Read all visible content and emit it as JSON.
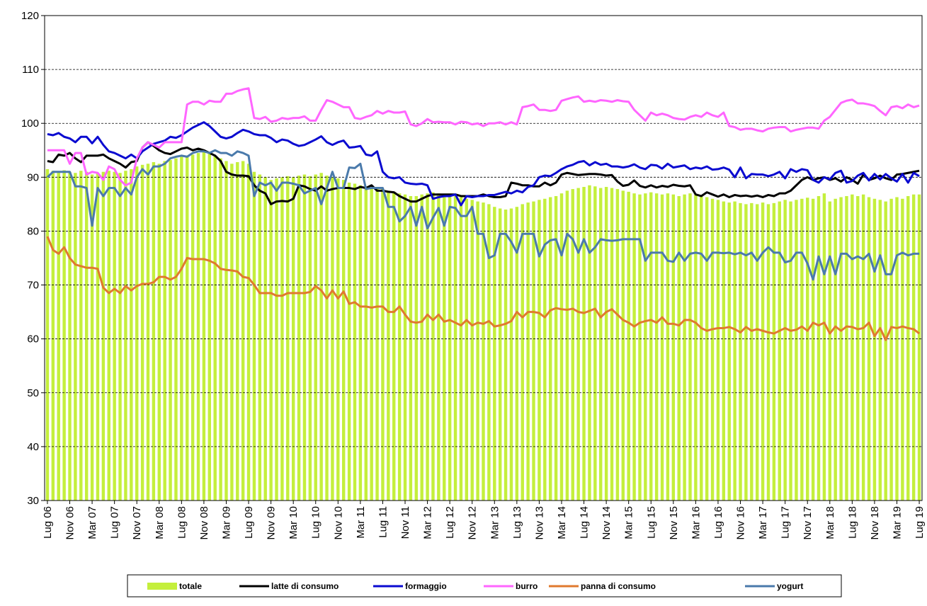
{
  "chart_data": {
    "type": "line",
    "categories": [
      "Lug 06",
      null,
      null,
      null,
      "Nov 06",
      null,
      null,
      null,
      "Mar 07",
      null,
      null,
      null,
      "Lug 07",
      null,
      null,
      null,
      "Nov 07",
      null,
      null,
      null,
      "Mar 08",
      null,
      null,
      null,
      "Lug 08",
      null,
      null,
      null,
      "Nov 08",
      null,
      null,
      null,
      "Mar 09",
      null,
      null,
      null,
      "Lug 09",
      null,
      null,
      null,
      "Nov 09",
      null,
      null,
      null,
      "Mar 10",
      null,
      null,
      null,
      "Lug 10",
      null,
      null,
      null,
      "Nov 10",
      null,
      null,
      null,
      "Mar 11",
      null,
      null,
      null,
      "Lug 11",
      null,
      null,
      null,
      "Nov 11",
      null,
      null,
      null,
      "Mar 12",
      null,
      null,
      null,
      "Lug 12",
      null,
      null,
      null,
      "Nov 12",
      null,
      null,
      null,
      "Mar 13",
      null,
      null,
      null,
      "Lug 13",
      null,
      null,
      null,
      "Nov 13",
      null,
      null,
      null,
      "Mar 14",
      null,
      null,
      null,
      "Lug 14",
      null,
      null,
      null,
      "Nov 14",
      null,
      null,
      null,
      "Mar 15",
      null,
      null,
      null,
      "Lug 15",
      null,
      null,
      null,
      "Nov 15",
      null,
      null,
      null,
      "Mar 16",
      null,
      null,
      null,
      "Lug 16",
      null,
      null,
      null,
      "Nov 16",
      null,
      null,
      null,
      "Mar 17",
      null,
      null,
      null,
      "Lug 17",
      null,
      null,
      null,
      "Nov 17",
      null,
      null,
      null,
      "Mar 18",
      null,
      null,
      null,
      "Lug 18",
      null,
      null,
      null,
      "Nov 18",
      null,
      null,
      null,
      "Mar 19",
      null,
      null,
      null,
      "Lug 19"
    ],
    "series": [
      {
        "name": "totale",
        "type": "bar",
        "color": "#c4ef3c",
        "values": [
          91.5,
          91.2,
          91.0,
          91.3,
          91.0,
          90.8,
          91.2,
          91.0,
          90.5,
          90.8,
          91.0,
          91.2,
          91.0,
          90.8,
          91.2,
          91.5,
          92.0,
          92.3,
          92.5,
          92.8,
          92.5,
          93.0,
          93.2,
          93.5,
          93.8,
          94.0,
          94.2,
          94.5,
          94.8,
          94.5,
          94.0,
          93.5,
          93.0,
          92.5,
          92.8,
          93.0,
          92.5,
          91.0,
          90.5,
          90.0,
          89.5,
          89.8,
          90.0,
          90.2,
          90.0,
          90.3,
          90.5,
          90.2,
          90.5,
          90.8,
          90.3,
          90.0,
          89.8,
          89.5,
          89.0,
          88.8,
          88.5,
          88.3,
          88.0,
          88.0,
          87.8,
          87.5,
          87.3,
          87.0,
          86.8,
          86.5,
          86.5,
          86.8,
          87.0,
          87.2,
          87.0,
          86.8,
          86.8,
          86.5,
          86.3,
          86.0,
          85.8,
          85.5,
          85.3,
          85.0,
          84.5,
          84.2,
          84.0,
          84.2,
          84.5,
          85.0,
          85.3,
          85.5,
          85.8,
          86.0,
          86.3,
          86.5,
          87.0,
          87.5,
          87.8,
          88.0,
          88.2,
          88.5,
          88.3,
          88.0,
          88.2,
          88.0,
          87.8,
          87.5,
          87.3,
          87.0,
          86.8,
          87.0,
          87.2,
          87.0,
          86.8,
          87.0,
          86.8,
          86.5,
          86.8,
          87.0,
          86.8,
          86.5,
          86.3,
          86.0,
          85.8,
          85.5,
          85.3,
          85.5,
          85.2,
          85.0,
          85.2,
          85.0,
          85.3,
          85.0,
          85.2,
          85.5,
          85.8,
          85.5,
          85.8,
          86.0,
          86.2,
          86.0,
          86.5,
          87.0,
          85.5,
          86.0,
          86.3,
          86.5,
          86.8,
          86.5,
          86.8,
          86.3,
          86.0,
          85.8,
          85.5,
          86.0,
          86.3,
          86.0,
          86.5,
          86.8,
          86.8
        ]
      },
      {
        "name": "latte di consumo",
        "color": "#000000",
        "values": [
          93.0,
          92.8,
          94.2,
          94.0,
          94.5,
          93.5,
          92.8,
          94.0,
          94.0,
          94.0,
          94.2,
          93.5,
          93.0,
          92.5,
          91.8,
          92.8,
          93.0,
          95.5,
          96.5,
          95.8,
          95.0,
          94.5,
          94.3,
          94.8,
          95.3,
          95.5,
          95.0,
          95.3,
          95.0,
          94.5,
          94.0,
          93.0,
          91.0,
          90.5,
          90.3,
          90.3,
          90.2,
          88.5,
          87.5,
          87.0,
          85.0,
          85.5,
          85.6,
          85.5,
          86.0,
          88.5,
          88.3,
          87.8,
          87.5,
          88.3,
          87.5,
          87.8,
          88.0,
          88.0,
          88.0,
          87.8,
          88.2,
          88.0,
          88.5,
          87.5,
          87.5,
          87.3,
          87.2,
          86.5,
          86.0,
          85.5,
          85.5,
          86.0,
          86.5,
          86.8,
          86.8,
          86.8,
          86.8,
          86.8,
          86.5,
          86.5,
          86.5,
          86.5,
          86.8,
          86.5,
          86.3,
          86.3,
          86.5,
          89.0,
          88.8,
          88.5,
          88.5,
          88.3,
          88.3,
          89.0,
          88.5,
          89.0,
          90.5,
          90.8,
          90.6,
          90.4,
          90.5,
          90.6,
          90.6,
          90.5,
          90.3,
          90.4,
          89.2,
          88.4,
          88.6,
          89.4,
          88.4,
          88.1,
          88.5,
          88.1,
          88.4,
          88.2,
          88.6,
          88.4,
          88.3,
          88.5,
          86.8,
          86.5,
          87.2,
          86.8,
          86.4,
          86.8,
          86.3,
          86.7,
          86.5,
          86.6,
          86.4,
          86.6,
          86.3,
          86.7,
          86.5,
          87.0,
          87.0,
          87.5,
          88.5,
          89.5,
          90.0,
          89.5,
          89.8,
          90.0,
          89.5,
          89.8,
          89.2,
          90.0,
          89.5,
          88.8,
          90.5,
          89.5,
          89.8,
          90.3,
          89.8,
          89.5,
          90.5,
          90.6,
          90.8,
          91.0,
          91.2
        ]
      },
      {
        "name": "formaggio",
        "color": "#0a0ad0",
        "values": [
          98.0,
          97.8,
          98.2,
          97.5,
          97.2,
          96.5,
          97.5,
          97.5,
          96.3,
          97.5,
          96.0,
          94.8,
          94.5,
          94.0,
          93.5,
          94.2,
          93.5,
          94.8,
          95.5,
          96.2,
          96.5,
          96.8,
          97.5,
          97.3,
          97.8,
          98.5,
          99.2,
          99.7,
          100.2,
          99.5,
          98.5,
          97.5,
          97.2,
          97.5,
          98.2,
          98.8,
          98.5,
          98.0,
          97.8,
          97.8,
          97.3,
          96.5,
          97.0,
          96.8,
          96.2,
          95.8,
          96.0,
          96.5,
          97.0,
          97.6,
          96.5,
          96.0,
          96.5,
          96.8,
          95.5,
          95.6,
          95.8,
          94.2,
          94.0,
          94.8,
          91.0,
          90.0,
          89.8,
          90.0,
          89.0,
          88.8,
          88.7,
          88.8,
          88.5,
          86.0,
          86.3,
          86.5,
          86.5,
          86.8,
          84.8,
          86.5,
          86.3,
          86.5,
          86.5,
          86.7,
          86.7,
          87.0,
          87.3,
          87.0,
          87.5,
          87.2,
          88.2,
          88.5,
          90.0,
          90.3,
          90.2,
          90.8,
          91.5,
          92.0,
          92.3,
          92.8,
          93.0,
          92.2,
          92.8,
          92.3,
          92.5,
          92.0,
          92.0,
          91.8,
          92.0,
          92.4,
          91.8,
          91.5,
          92.3,
          92.2,
          91.6,
          92.5,
          91.8,
          92.0,
          92.2,
          91.5,
          91.8,
          91.6,
          92.0,
          91.4,
          91.5,
          91.8,
          91.4,
          90.0,
          91.8,
          89.8,
          90.6,
          90.5,
          90.5,
          90.2,
          90.5,
          91.0,
          89.8,
          91.5,
          91.0,
          91.5,
          91.3,
          89.5,
          89.0,
          90.0,
          89.6,
          90.8,
          91.2,
          89.0,
          89.3,
          90.3,
          90.8,
          89.4,
          90.6,
          89.6,
          90.6,
          89.8,
          89.2,
          90.6,
          89.0,
          90.8,
          90.2
        ]
      },
      {
        "name": "burro",
        "color": "#ff66ff",
        "values": [
          95.0,
          95.0,
          95.0,
          95.0,
          92.5,
          94.5,
          94.5,
          90.5,
          91.0,
          90.8,
          89.5,
          92.0,
          91.5,
          89.5,
          88.5,
          89.0,
          93.5,
          95.5,
          96.5,
          96.0,
          95.5,
          96.5,
          96.5,
          96.5,
          96.5,
          103.5,
          104.0,
          104.0,
          103.5,
          104.2,
          104.0,
          104.0,
          105.5,
          105.5,
          106.0,
          106.3,
          106.5,
          101.0,
          100.8,
          101.2,
          100.3,
          100.5,
          101.0,
          100.8,
          101.0,
          101.0,
          101.3,
          100.5,
          100.5,
          102.5,
          104.3,
          104.0,
          103.5,
          103.0,
          103.0,
          101.0,
          100.8,
          101.2,
          101.5,
          102.3,
          101.8,
          102.3,
          102.0,
          102.0,
          102.2,
          99.8,
          99.5,
          100.0,
          100.8,
          100.2,
          100.3,
          100.2,
          100.2,
          99.8,
          100.3,
          100.2,
          99.8,
          100.0,
          99.5,
          100.0,
          100.0,
          100.2,
          99.8,
          100.2,
          99.8,
          103.0,
          103.2,
          103.5,
          102.5,
          102.5,
          102.3,
          102.5,
          104.2,
          104.5,
          104.8,
          105.0,
          104.0,
          104.2,
          104.0,
          104.3,
          104.2,
          104.0,
          104.3,
          104.1,
          104.0,
          102.5,
          101.5,
          100.5,
          102.0,
          101.5,
          101.8,
          101.5,
          101.0,
          100.8,
          100.7,
          101.2,
          101.5,
          101.2,
          102.0,
          101.5,
          101.2,
          102.0,
          99.5,
          99.3,
          98.8,
          99.0,
          99.0,
          98.7,
          98.5,
          99.0,
          99.2,
          99.3,
          99.3,
          98.5,
          98.8,
          99.0,
          99.2,
          99.2,
          99.0,
          100.5,
          101.2,
          102.5,
          103.8,
          104.2,
          104.4,
          103.7,
          103.7,
          103.5,
          103.2,
          102.3,
          101.5,
          103.0,
          103.2,
          102.8,
          103.5,
          103.0,
          103.3
        ]
      },
      {
        "name": "panna di consumo",
        "color": "#e07a2e",
        "values": [
          79,
          76.5,
          75.8,
          77,
          75,
          73.8,
          73.5,
          73.2,
          73.2,
          73,
          69.5,
          68.5,
          69.3,
          68.5,
          69.8,
          69,
          69.8,
          70.2,
          70.2,
          70.5,
          71.5,
          71.5,
          71,
          71.5,
          73,
          75,
          74.8,
          74.8,
          74.8,
          74.5,
          74,
          73,
          72.8,
          72.7,
          72.5,
          71.5,
          71.3,
          70,
          68.5,
          68.5,
          68.5,
          68,
          68,
          68.5,
          68.5,
          68.5,
          68.5,
          68.7,
          69.8,
          69,
          67.5,
          69,
          67.5,
          68.8,
          66.5,
          66.8,
          66,
          66,
          65.8,
          66,
          66,
          65,
          65,
          66,
          64.5,
          63.2,
          63,
          63.2,
          64.5,
          63.5,
          64.5,
          63.2,
          63.5,
          63,
          62.5,
          63.5,
          62.5,
          63,
          62.8,
          63.3,
          62.3,
          62.5,
          62.8,
          63.3,
          65,
          64,
          65,
          65,
          64.8,
          64,
          65.3,
          65.7,
          65.5,
          65.4,
          65.6,
          65,
          64.8,
          65.2,
          65.6,
          64,
          65,
          65.5,
          64.5,
          63.5,
          63,
          62.3,
          63,
          63.3,
          63.5,
          63,
          64,
          62.8,
          62.8,
          62.5,
          63.5,
          63.5,
          63,
          62,
          61.5,
          61.8,
          62,
          62,
          62.2,
          61.8,
          61.2,
          62.2,
          61.5,
          61.8,
          61.5,
          61.2,
          61,
          61.5,
          62,
          61.5,
          61.7,
          62.3,
          61.5,
          63,
          62.5,
          63,
          61,
          62.3,
          61.5,
          62.3,
          62.2,
          61.8,
          62,
          63,
          60.5,
          62,
          59.8,
          62.2,
          62,
          62.3,
          62,
          61.8,
          61
        ]
      },
      {
        "name": "yogurt",
        "color": "#4a7aab",
        "values": [
          90,
          91,
          91,
          91,
          91,
          88.3,
          88.3,
          88,
          81,
          88,
          86.5,
          88,
          88,
          86.5,
          88,
          86.8,
          90,
          91.5,
          90.5,
          92,
          92,
          92.5,
          93.5,
          93.8,
          94,
          93.8,
          94.5,
          94.8,
          94.8,
          94.5,
          95,
          94.5,
          94.5,
          94,
          94.8,
          94.5,
          94,
          86.5,
          89,
          88.5,
          89,
          87.5,
          89,
          89,
          88.8,
          88.5,
          87,
          87.5,
          88,
          85,
          88,
          91,
          88,
          88,
          91.8,
          91.7,
          92.5,
          87.8,
          88,
          88,
          88,
          84.5,
          84.5,
          81.8,
          82.8,
          84.5,
          81,
          84.5,
          80.5,
          82.5,
          84.3,
          81,
          84.5,
          84.3,
          82.8,
          82.8,
          84.5,
          79.5,
          79.5,
          75,
          75.5,
          79.5,
          79.5,
          78,
          76,
          79.5,
          79.5,
          79.5,
          75.3,
          77.5,
          78.3,
          78.5,
          75.5,
          79.5,
          78.5,
          76,
          78.5,
          76,
          77,
          78.5,
          78.3,
          78.2,
          78.3,
          78.5,
          78.5,
          78.5,
          78.5,
          74.5,
          76,
          76,
          76,
          74.5,
          74.3,
          76,
          74.5,
          75.8,
          76,
          75.8,
          74.5,
          76,
          76,
          75.9,
          76,
          75.7,
          76,
          75.5,
          76,
          74.5,
          76,
          77,
          76,
          76,
          74.2,
          74.5,
          76,
          76,
          74,
          71,
          75.3,
          72,
          75.3,
          72,
          75.8,
          75.8,
          74.8,
          75.3,
          74.8,
          75.8,
          72.5,
          75.5,
          72,
          72,
          75.5,
          76,
          75.5,
          75.8,
          75.8
        ]
      }
    ],
    "ylim": [
      30,
      120
    ],
    "yticks": [
      30,
      40,
      50,
      60,
      70,
      80,
      90,
      100,
      110,
      120
    ],
    "grid": true
  }
}
